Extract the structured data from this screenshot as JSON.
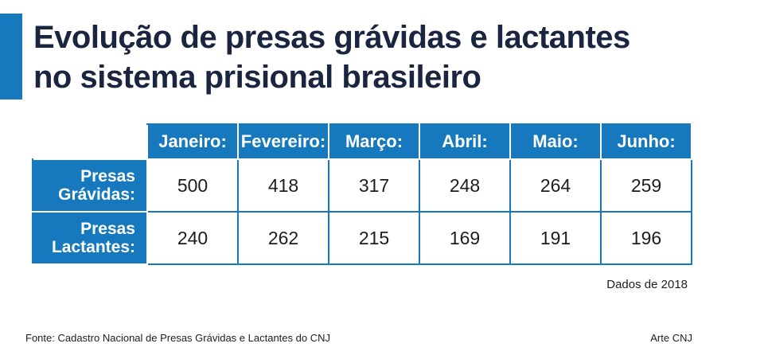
{
  "title": {
    "line1": "Evolução de presas grávidas e lactantes",
    "line2": "no sistema prisional brasileiro"
  },
  "colors": {
    "accent": "#1779bd",
    "title": "#1a2540"
  },
  "chart_data": {
    "type": "table",
    "title": "Evolução de presas grávidas e lactantes no sistema prisional brasileiro",
    "columns": [
      "Janeiro:",
      "Fevereiro:",
      "Março:",
      "Abril:",
      "Maio:",
      "Junho:"
    ],
    "rows": [
      {
        "label_line1": "Presas",
        "label_line2": "Grávidas:",
        "values": [
          500,
          418,
          317,
          248,
          264,
          259
        ]
      },
      {
        "label_line1": "Presas",
        "label_line2": "Lactantes:",
        "values": [
          240,
          262,
          215,
          169,
          191,
          196
        ]
      }
    ]
  },
  "note": "Dados de 2018",
  "source": "Fonte: Cadastro Nacional de Presas Grávidas e Lactantes do CNJ",
  "credit": "Arte CNJ"
}
